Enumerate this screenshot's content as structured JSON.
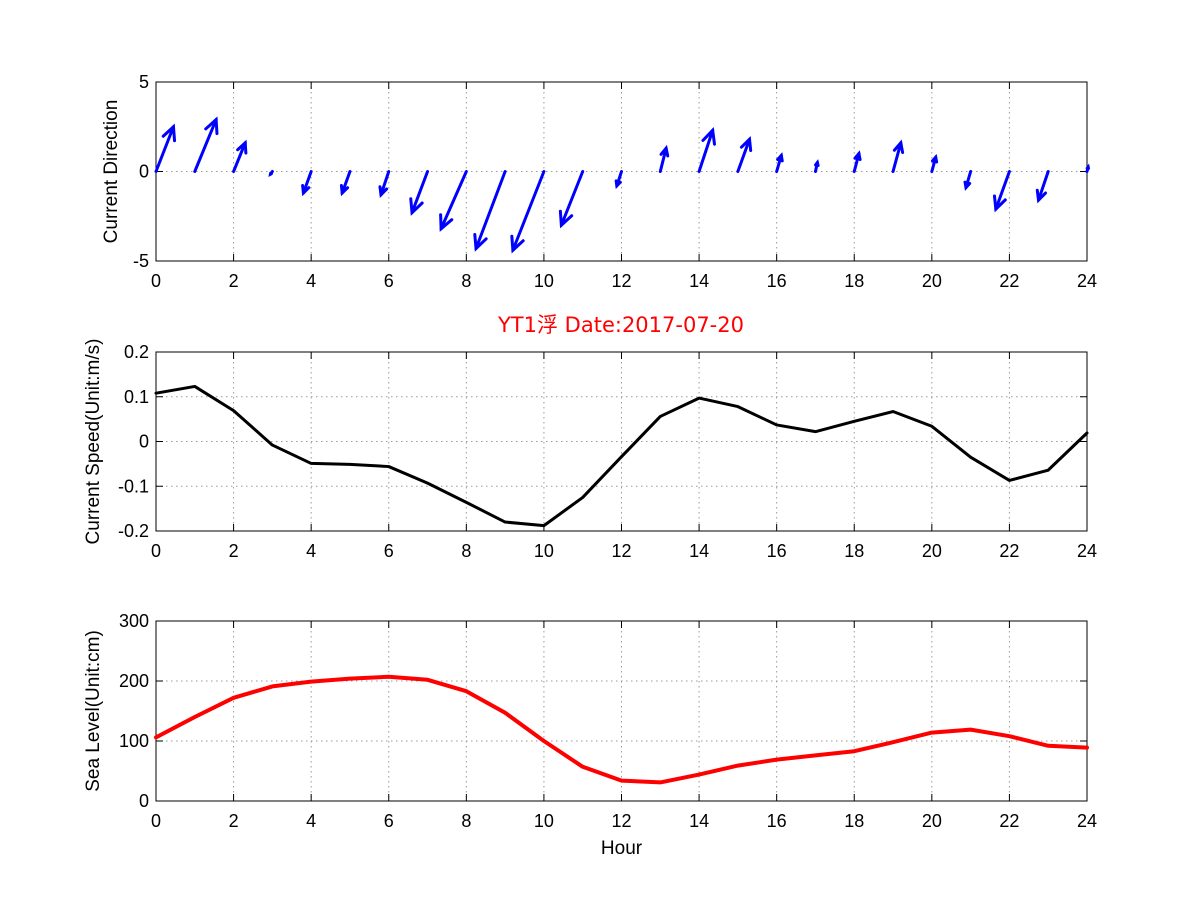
{
  "title": "YT1浮   Date:2017-07-20",
  "title_color": "#ff0000",
  "chart_data": [
    {
      "type": "quiver",
      "ylabel": "Current Direction",
      "xlim": [
        0,
        24
      ],
      "ylim": [
        -5,
        5
      ],
      "xticks": [
        0,
        2,
        4,
        6,
        8,
        10,
        12,
        14,
        16,
        18,
        20,
        22,
        24
      ],
      "yticks": [
        -5,
        0,
        5
      ],
      "grid": true,
      "color": "#0000ff",
      "series": [
        {
          "x": [
            0,
            1,
            2,
            3,
            4,
            5,
            6,
            7,
            8,
            9,
            10,
            11,
            12,
            13,
            14,
            15,
            16,
            17,
            18,
            19,
            20,
            21,
            22,
            23,
            24
          ]
        }
      ],
      "u": [
        0.45,
        0.55,
        0.3,
        -0.05,
        -0.2,
        -0.2,
        -0.2,
        -0.4,
        -0.65,
        -0.75,
        -0.8,
        -0.55,
        -0.12,
        0.15,
        0.35,
        0.3,
        0.12,
        0.05,
        0.12,
        0.2,
        0.1,
        -0.12,
        -0.35,
        -0.25,
        0.03
      ],
      "v": [
        2.5,
        2.9,
        1.6,
        -0.15,
        -1.2,
        -1.2,
        -1.3,
        -2.3,
        -3.2,
        -4.3,
        -4.4,
        -3.0,
        -0.8,
        1.3,
        2.3,
        1.8,
        0.9,
        0.5,
        1.0,
        1.6,
        0.8,
        -0.9,
        -2.1,
        -1.6,
        0.25
      ]
    },
    {
      "type": "line",
      "ylabel": "Current Speed(Unit:m/s)",
      "xlim": [
        0,
        24
      ],
      "ylim": [
        -0.2,
        0.2
      ],
      "xticks": [
        0,
        2,
        4,
        6,
        8,
        10,
        12,
        14,
        16,
        18,
        20,
        22,
        24
      ],
      "yticks": [
        -0.2,
        -0.1,
        0,
        0.1,
        0.2
      ],
      "grid": true,
      "series": [
        {
          "color": "#000000",
          "x": [
            0,
            1,
            2,
            3,
            4,
            5,
            6,
            7,
            8,
            9,
            10,
            11,
            12,
            13,
            14,
            15,
            16,
            17,
            18,
            19,
            20,
            21,
            22,
            23,
            24
          ],
          "values": [
            0.108,
            0.123,
            0.069,
            -0.008,
            -0.049,
            -0.051,
            -0.056,
            -0.093,
            -0.136,
            -0.18,
            -0.188,
            -0.125,
            -0.034,
            0.056,
            0.097,
            0.078,
            0.037,
            0.022,
            0.045,
            0.067,
            0.034,
            -0.035,
            -0.087,
            -0.064,
            0.019
          ]
        }
      ]
    },
    {
      "type": "line",
      "ylabel": "Sea Level(Unit:cm)",
      "xlabel": "Hour",
      "xlim": [
        0,
        24
      ],
      "ylim": [
        0,
        300
      ],
      "xticks": [
        0,
        2,
        4,
        6,
        8,
        10,
        12,
        14,
        16,
        18,
        20,
        22,
        24
      ],
      "yticks": [
        0,
        100,
        200,
        300
      ],
      "grid": true,
      "series": [
        {
          "color": "#ff0000",
          "x": [
            0,
            1,
            2,
            3,
            4,
            5,
            6,
            7,
            8,
            9,
            10,
            11,
            12,
            13,
            14,
            15,
            16,
            17,
            18,
            19,
            20,
            21,
            22,
            23,
            24
          ],
          "values": [
            106,
            140,
            172,
            191,
            199,
            204,
            207,
            202,
            183,
            147,
            100,
            57,
            34,
            31,
            44,
            59,
            69,
            76,
            83,
            98,
            114,
            119,
            108,
            92,
            89
          ]
        }
      ]
    }
  ]
}
